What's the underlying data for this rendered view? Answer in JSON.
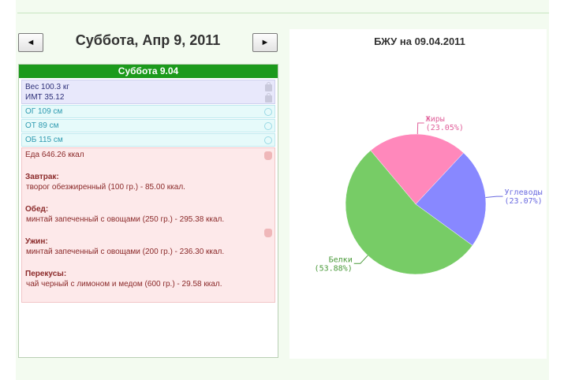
{
  "nav": {
    "prev_label": "◄",
    "next_label": "►",
    "title": "Суббота, Апр 9, 2011"
  },
  "day": {
    "header": "Суббота 9.04",
    "weight": "Вес 100.3 кг",
    "bmi": "ИМТ 35.12",
    "measurements": [
      "ОГ 109 см",
      "ОТ 89 см",
      "ОБ 115 см"
    ],
    "food_total": "Еда 646.26 ккал",
    "meals": [
      {
        "title": "Завтрак:",
        "item": "творог обезжиренный (100 гр.) - 85.00 ккал."
      },
      {
        "title": "Обед:",
        "item": "минтай запеченный с овощами (250 гр.) - 295.38 ккал."
      },
      {
        "title": "Ужин:",
        "item": "минтай запеченный с овощами (200 гр.) - 236.30 ккал."
      },
      {
        "title": "Перекусы:",
        "item": "чай черный с лимоном и медом (600 гр.) - 29.58 ккал."
      }
    ]
  },
  "icons": {
    "weight": "lock-icon",
    "measure": "edit-icon",
    "food": "hand-icon"
  },
  "chart_data": {
    "type": "pie",
    "title": "БЖУ на 09.04.2011",
    "slices": [
      {
        "name": "Жиры",
        "label": "(23.05%)",
        "value": 23.05,
        "color": "#ff88bb",
        "text_color": "#e0609a"
      },
      {
        "name": "Углеводы",
        "label": "(23.07%)",
        "value": 23.07,
        "color": "#8888ff",
        "text_color": "#6a6ae0"
      },
      {
        "name": "Белки",
        "label": "(53.88%)",
        "value": 53.88,
        "color": "#77cc66",
        "text_color": "#4a9a3a"
      }
    ]
  }
}
